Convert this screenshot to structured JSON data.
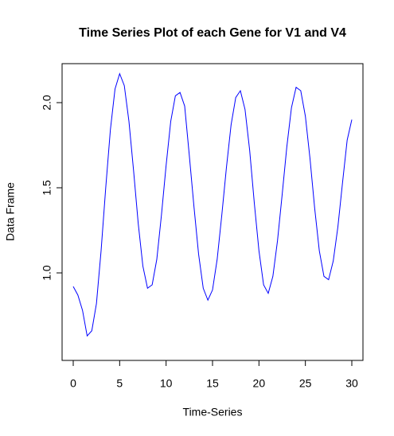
{
  "chart_data": {
    "type": "line",
    "title": "Time Series Plot of each Gene for V1 and V4",
    "x_label": "Time-Series",
    "y_label": "Data Frame",
    "color": "#0000ff",
    "x": [
      0,
      0.5,
      1,
      1.5,
      2,
      2.5,
      3,
      3.5,
      4,
      4.5,
      5,
      5.5,
      6,
      6.5,
      7,
      7.5,
      8,
      8.5,
      9,
      9.5,
      10,
      10.5,
      11,
      11.5,
      12,
      12.5,
      13,
      13.5,
      14,
      14.5,
      15,
      15.5,
      16,
      16.5,
      17,
      17.5,
      18,
      18.5,
      19,
      19.5,
      20,
      20.5,
      21,
      21.5,
      22,
      22.5,
      23,
      23.5,
      24,
      24.5,
      25,
      25.5,
      26,
      26.5,
      27,
      27.5,
      28,
      28.5,
      29,
      29.5,
      30
    ],
    "values": [
      0.92,
      0.87,
      0.78,
      0.63,
      0.66,
      0.82,
      1.13,
      1.5,
      1.84,
      2.08,
      2.17,
      2.1,
      1.89,
      1.6,
      1.29,
      1.04,
      0.91,
      0.93,
      1.08,
      1.34,
      1.63,
      1.89,
      2.04,
      2.06,
      1.98,
      1.69,
      1.39,
      1.11,
      0.91,
      0.84,
      0.9,
      1.08,
      1.34,
      1.62,
      1.87,
      2.03,
      2.07,
      1.96,
      1.72,
      1.41,
      1.13,
      0.93,
      0.88,
      0.98,
      1.19,
      1.46,
      1.74,
      1.97,
      2.09,
      2.07,
      1.92,
      1.67,
      1.38,
      1.13,
      0.98,
      0.96,
      1.07,
      1.27,
      1.53,
      1.78,
      1.9
    ],
    "xlim": [
      -1.2,
      31.2
    ],
    "ylim": [
      0.486,
      2.229
    ],
    "xticks": [
      0,
      5,
      10,
      15,
      20,
      25,
      30
    ],
    "yticks": [
      {
        "value": 1,
        "label": "1.0"
      },
      1.5,
      {
        "value": 2,
        "label": "2.0"
      }
    ]
  }
}
